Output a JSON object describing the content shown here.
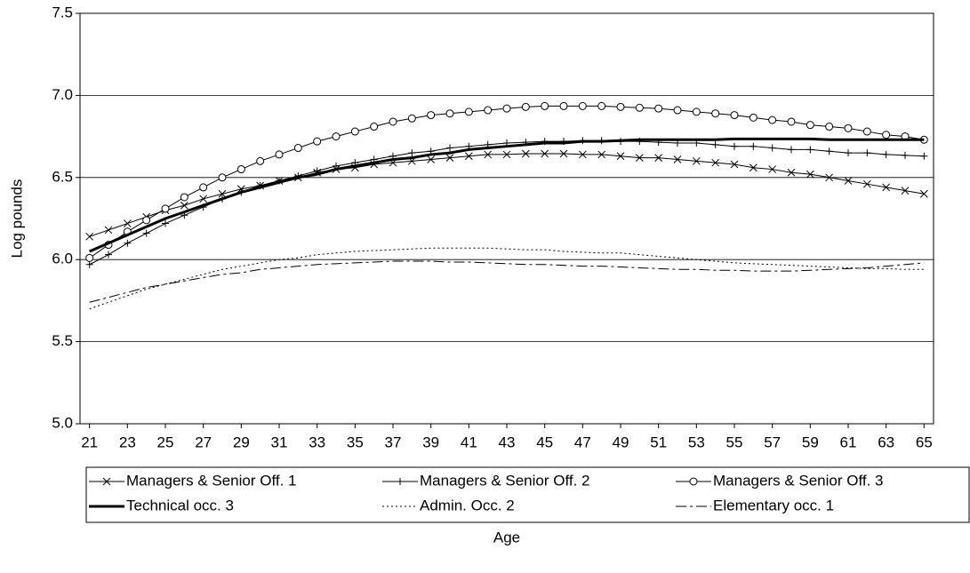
{
  "chart_data": {
    "type": "line",
    "xlabel": "Age",
    "ylabel": "Log pounds",
    "x": [
      21,
      22,
      23,
      24,
      25,
      26,
      27,
      28,
      29,
      30,
      31,
      32,
      33,
      34,
      35,
      36,
      37,
      38,
      39,
      40,
      41,
      42,
      43,
      44,
      45,
      46,
      47,
      48,
      49,
      50,
      51,
      52,
      53,
      54,
      55,
      56,
      57,
      58,
      59,
      60,
      61,
      62,
      63,
      64,
      65
    ],
    "xlim": [
      20.5,
      65.5
    ],
    "xticks": [
      21,
      23,
      25,
      27,
      29,
      31,
      33,
      35,
      37,
      39,
      41,
      43,
      45,
      47,
      49,
      51,
      53,
      55,
      57,
      59,
      61,
      63,
      65
    ],
    "ylim": [
      5,
      7.5
    ],
    "yticks": [
      {
        "value": 5,
        "label": "5.0"
      },
      5.5,
      {
        "value": 6,
        "label": "6.0"
      },
      6.5,
      {
        "value": 7,
        "label": "7.0"
      },
      7.5
    ],
    "grid": true,
    "series": [
      {
        "name": "Managers & Senior Off. 1",
        "color": "#000000",
        "marker": "x",
        "line_style": "solid",
        "line_width": 1,
        "values": [
          6.14,
          6.18,
          6.22,
          6.26,
          6.3,
          6.33,
          6.37,
          6.4,
          6.43,
          6.45,
          6.48,
          6.5,
          6.53,
          6.55,
          6.56,
          6.58,
          6.59,
          6.6,
          6.61,
          6.62,
          6.63,
          6.64,
          6.64,
          6.645,
          6.645,
          6.645,
          6.64,
          6.64,
          6.63,
          6.62,
          6.62,
          6.61,
          6.6,
          6.59,
          6.58,
          6.56,
          6.55,
          6.53,
          6.52,
          6.5,
          6.48,
          6.46,
          6.44,
          6.42,
          6.4
        ]
      },
      {
        "name": "Managers & Senior Off. 2",
        "color": "#000000",
        "marker": "+",
        "line_style": "solid",
        "line_width": 1,
        "values": [
          5.97,
          6.03,
          6.1,
          6.16,
          6.22,
          6.27,
          6.32,
          6.37,
          6.41,
          6.45,
          6.48,
          6.51,
          6.54,
          6.57,
          6.59,
          6.61,
          6.63,
          6.65,
          6.66,
          6.68,
          6.69,
          6.7,
          6.71,
          6.715,
          6.72,
          6.72,
          6.725,
          6.725,
          6.72,
          6.72,
          6.715,
          6.71,
          6.71,
          6.7,
          6.69,
          6.69,
          6.68,
          6.67,
          6.67,
          6.66,
          6.65,
          6.65,
          6.64,
          6.635,
          6.63
        ]
      },
      {
        "name": "Managers & Senior Off. 3",
        "color": "#000000",
        "marker": "o",
        "line_style": "solid",
        "line_width": 1,
        "values": [
          6.01,
          6.09,
          6.17,
          6.24,
          6.31,
          6.38,
          6.44,
          6.5,
          6.55,
          6.6,
          6.64,
          6.68,
          6.72,
          6.75,
          6.78,
          6.81,
          6.84,
          6.86,
          6.88,
          6.89,
          6.9,
          6.91,
          6.92,
          6.93,
          6.935,
          6.935,
          6.935,
          6.935,
          6.93,
          6.925,
          6.92,
          6.91,
          6.9,
          6.89,
          6.88,
          6.865,
          6.85,
          6.84,
          6.82,
          6.81,
          6.8,
          6.78,
          6.76,
          6.75,
          6.73
        ]
      },
      {
        "name": "Technical occ. 3",
        "color": "#000000",
        "line_style": "solid",
        "line_width": 3,
        "values": [
          6.05,
          6.1,
          6.15,
          6.2,
          6.25,
          6.29,
          6.33,
          6.37,
          6.41,
          6.44,
          6.47,
          6.5,
          6.52,
          6.55,
          6.57,
          6.59,
          6.61,
          6.62,
          6.64,
          6.65,
          6.67,
          6.68,
          6.69,
          6.7,
          6.71,
          6.71,
          6.72,
          6.72,
          6.725,
          6.73,
          6.73,
          6.73,
          6.73,
          6.73,
          6.735,
          6.735,
          6.735,
          6.735,
          6.735,
          6.73,
          6.73,
          6.73,
          6.73,
          6.73,
          6.73
        ]
      },
      {
        "name": "Admin. Occ. 2",
        "color": "#000000",
        "line_style": "dotted",
        "line_width": 1,
        "values": [
          5.7,
          5.74,
          5.78,
          5.82,
          5.85,
          5.88,
          5.91,
          5.94,
          5.96,
          5.98,
          6.0,
          6.01,
          6.03,
          6.04,
          6.05,
          6.055,
          6.06,
          6.065,
          6.07,
          6.07,
          6.07,
          6.07,
          6.065,
          6.06,
          6.06,
          6.05,
          6.045,
          6.04,
          6.04,
          6.03,
          6.02,
          6.01,
          6.0,
          5.99,
          5.98,
          5.975,
          5.97,
          5.965,
          5.96,
          5.955,
          5.95,
          5.945,
          5.945,
          5.94,
          5.94
        ]
      },
      {
        "name": "Elementary occ. 1",
        "color": "#000000",
        "line_style": "dashdot",
        "line_width": 1,
        "values": [
          5.74,
          5.77,
          5.8,
          5.83,
          5.85,
          5.87,
          5.89,
          5.91,
          5.92,
          5.94,
          5.95,
          5.96,
          5.97,
          5.975,
          5.98,
          5.985,
          5.99,
          5.99,
          5.99,
          5.985,
          5.985,
          5.98,
          5.975,
          5.97,
          5.97,
          5.965,
          5.96,
          5.96,
          5.955,
          5.95,
          5.945,
          5.94,
          5.94,
          5.935,
          5.935,
          5.93,
          5.93,
          5.93,
          5.935,
          5.94,
          5.945,
          5.95,
          5.96,
          5.97,
          5.98
        ]
      }
    ]
  }
}
